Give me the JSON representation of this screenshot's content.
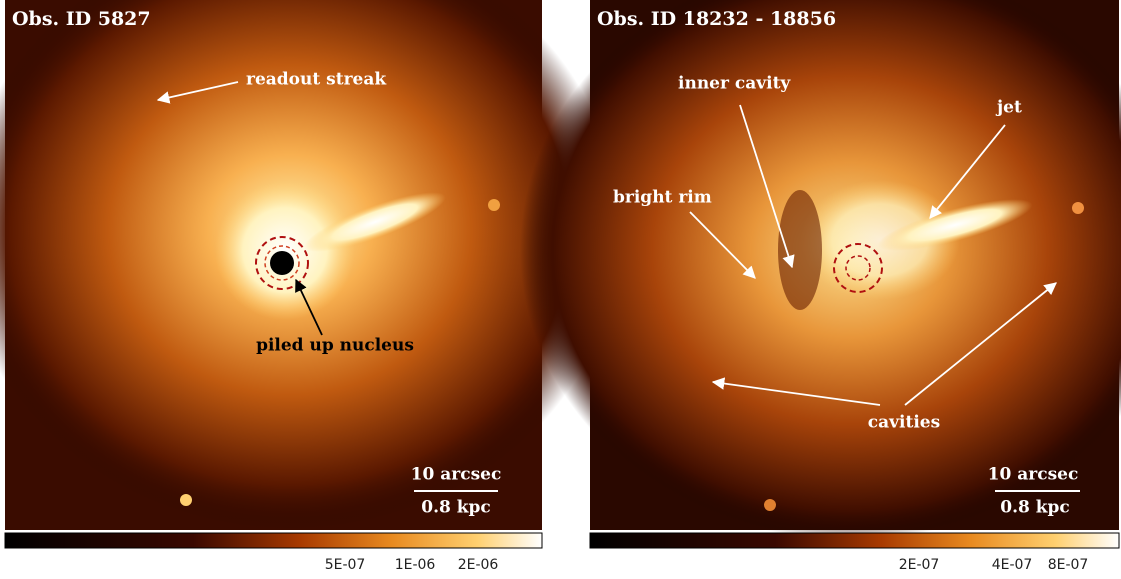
{
  "panels": [
    {
      "title": "Obs. ID 5827",
      "annotations": [
        "readout streak",
        "piled up nucleus"
      ],
      "scale_bar": [
        "10 arcsec",
        "0.8 kpc"
      ],
      "colorbar_ticks": [
        "5E-07",
        "1E-06",
        "2E-06"
      ]
    },
    {
      "title": "Obs. ID 18232 - 18856",
      "annotations": [
        "inner cavity",
        "jet",
        "bright rim",
        "cavities"
      ],
      "scale_bar": [
        "10 arcsec",
        "0.8 kpc"
      ],
      "colorbar_ticks": [
        "2E-07",
        "4E-07",
        "8E-07"
      ]
    }
  ]
}
